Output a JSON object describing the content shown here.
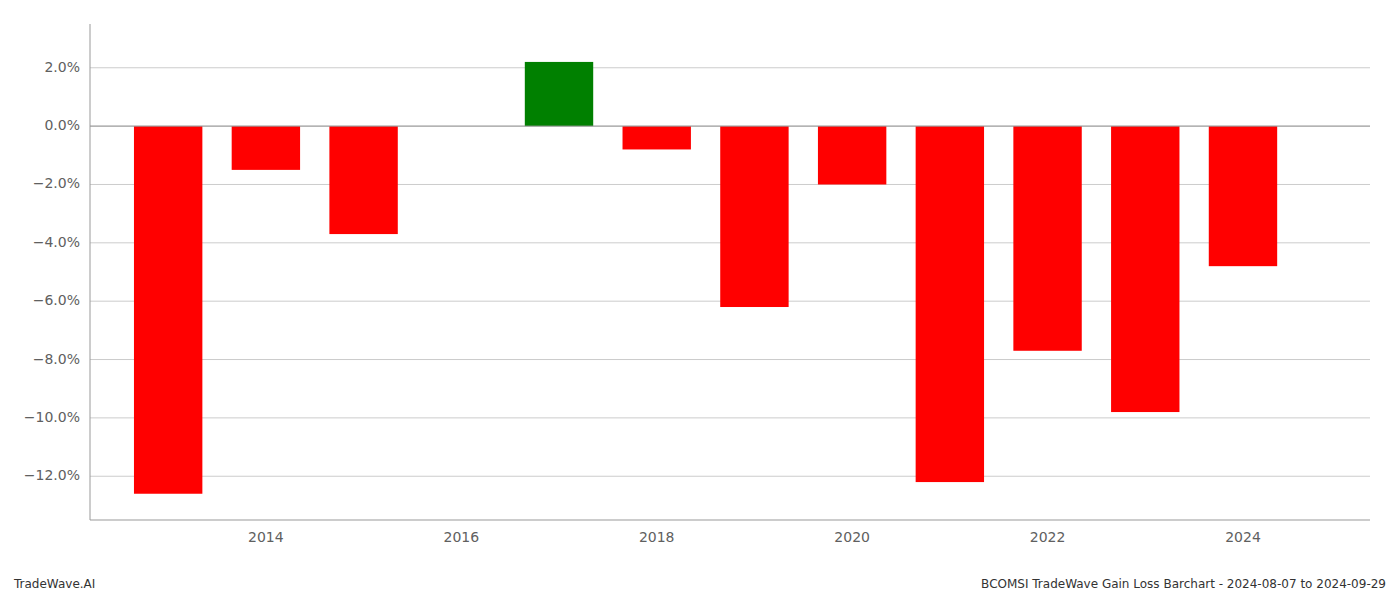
{
  "chart_data": {
    "type": "bar",
    "x": [
      2013,
      2014,
      2015,
      2016,
      2017,
      2018,
      2019,
      2020,
      2021,
      2022,
      2023,
      2024
    ],
    "values": [
      -0.126,
      -0.015,
      -0.037,
      0.0,
      0.022,
      -0.008,
      -0.062,
      -0.02,
      -0.122,
      -0.077,
      -0.098,
      -0.048
    ],
    "colors": [
      "#FF0000",
      "#FF0000",
      "#FF0000",
      "#008000",
      "#008000",
      "#FF0000",
      "#FF0000",
      "#FF0000",
      "#FF0000",
      "#FF0000",
      "#FF0000",
      "#FF0000"
    ],
    "xlim": [
      2012.2,
      2025.3
    ],
    "xticks": [
      2014,
      2016,
      2018,
      2020,
      2022,
      2024
    ],
    "ylim": [
      -0.135,
      0.035
    ],
    "yticks": [
      {
        "value": 0.02,
        "label": "2.0%"
      },
      {
        "value": 0.0,
        "label": "0.0%"
      },
      {
        "value": -0.02,
        "label": "−2.0%"
      },
      {
        "value": -0.04,
        "label": "−4.0%"
      },
      {
        "value": -0.06,
        "label": "−6.0%"
      },
      {
        "value": -0.08,
        "label": "−8.0%"
      },
      {
        "value": -0.1,
        "label": "−10.0%"
      },
      {
        "value": -0.12,
        "label": "−12.0%"
      }
    ],
    "grid": true,
    "annotations": [
      "TradeWave.AI",
      "BCOMSI TradeWave Gain Loss Barchart - 2024-08-07 to 2024-09-29"
    ]
  }
}
